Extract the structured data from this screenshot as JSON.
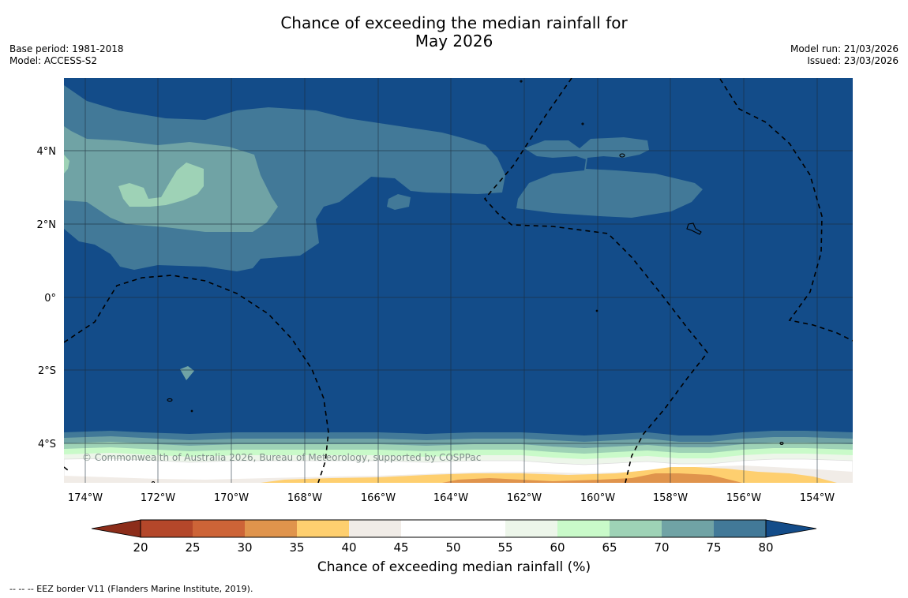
{
  "title_line1": "Chance of exceeding the median rainfall for",
  "title_line2": "May 2026",
  "meta_left": {
    "base_period": "Base period: 1981-2018",
    "model": "Model: ACCESS-S2"
  },
  "meta_right": {
    "model_run": "Model run: 21/03/2026",
    "issued": "Issued: 23/03/2026"
  },
  "lat_ticks": [
    "4°N",
    "2°N",
    "0°",
    "2°S",
    "4°S"
  ],
  "lon_ticks": [
    "174°W",
    "172°W",
    "170°W",
    "168°W",
    "166°W",
    "164°W",
    "162°W",
    "160°W",
    "158°W",
    "156°W",
    "154°W"
  ],
  "copyright": "© Commonwealth of Australia 2026, Bureau of Meteorology, supported by COSPPac",
  "colorbar": {
    "label": "Chance of exceeding median rainfall (%)",
    "ticks": [
      "20",
      "25",
      "30",
      "35",
      "40",
      "45",
      "50",
      "55",
      "60",
      "65",
      "70",
      "75",
      "80"
    ],
    "colors": [
      "#8c2d1a",
      "#b4472a",
      "#cd6437",
      "#e0944c",
      "#fecf6f",
      "#f1ece7",
      "#ffffff",
      "#ffffff",
      "#edf6ea",
      "#c9fac9",
      "#9ed2b6",
      "#70a3a5",
      "#427998",
      "#134c89"
    ]
  },
  "footer": "--  --  -- EEZ border V11 (Flanders Marine Institute, 2019)."
}
